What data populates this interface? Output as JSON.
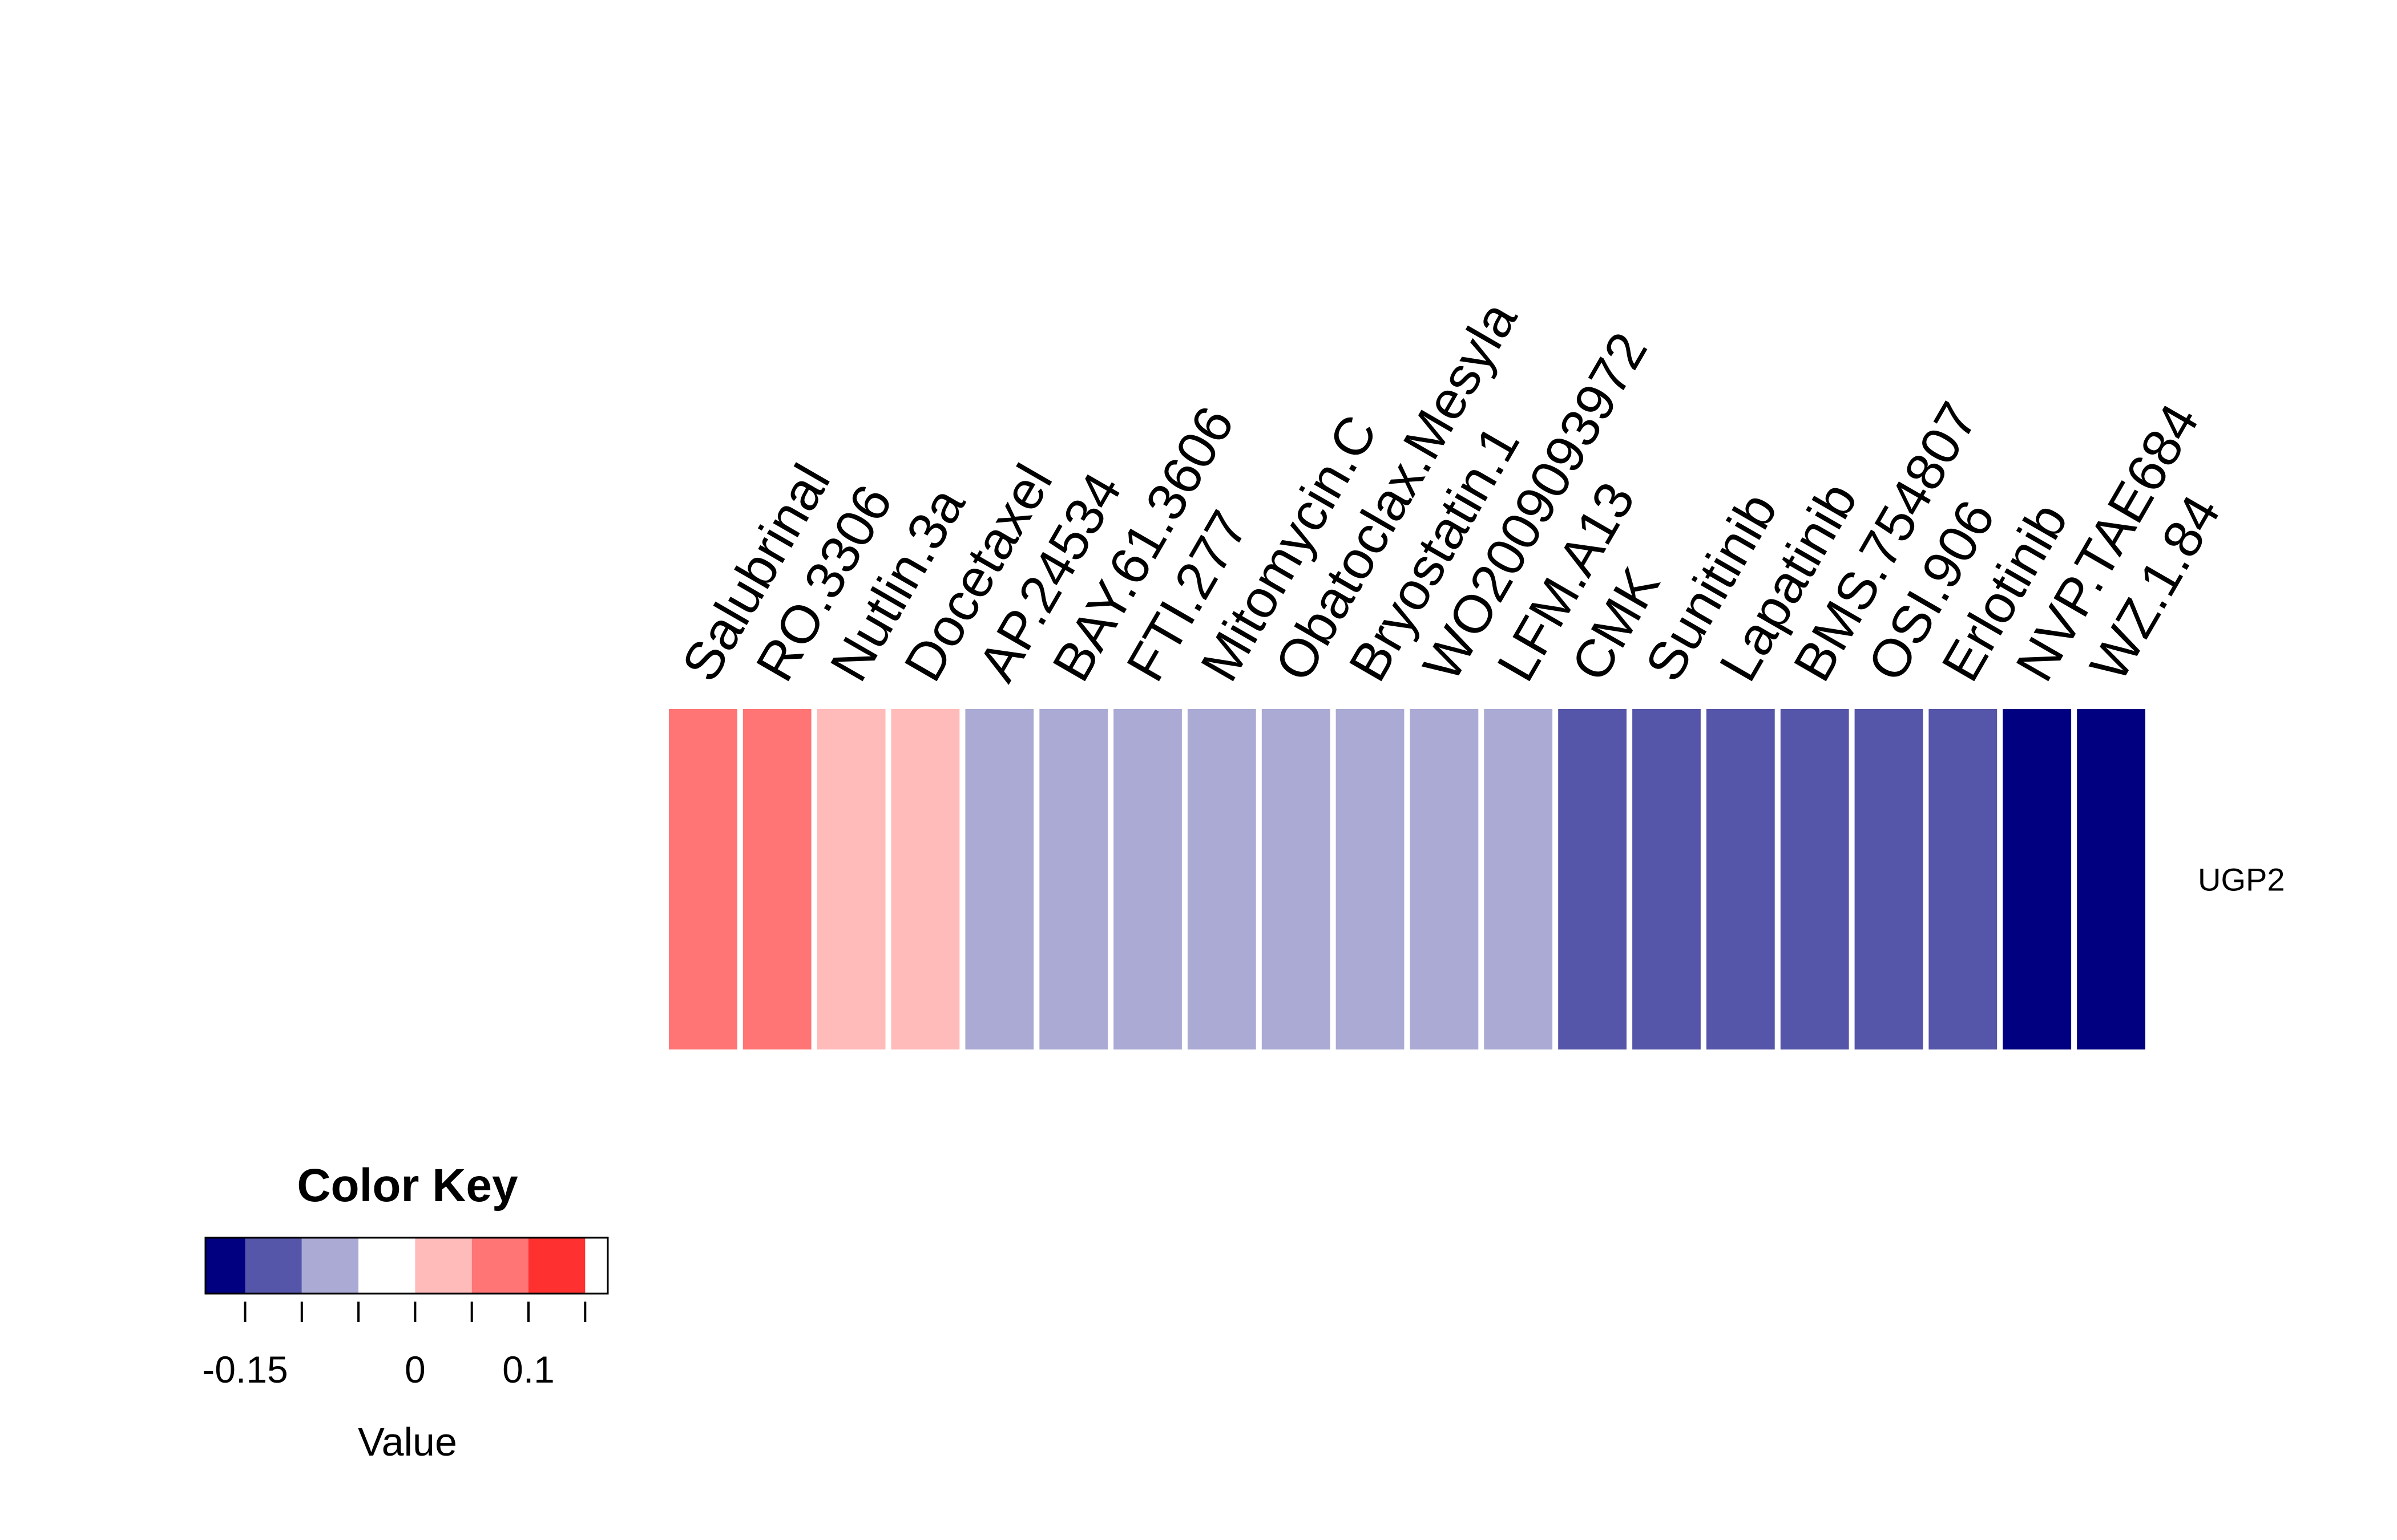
{
  "chart_data": {
    "type": "heatmap",
    "rows": [
      "UGP2"
    ],
    "columns": [
      "Salubrinal",
      "RO.3306",
      "Nutlin.3a",
      "Docetaxel",
      "AP.24534",
      "BAY.61.3606",
      "FTI.277",
      "Mitomycin.C",
      "Obatoclax.Mesyla",
      "Bryostatin.1",
      "WO2009093972",
      "LFM.A13",
      "CMK",
      "Sunitinib",
      "Lapatinib",
      "BMS.754807",
      "OSI.906",
      "Erlotinib",
      "NVP.TAE684",
      "WZ.1.84"
    ],
    "values": [
      [
        0.09,
        0.09,
        0.04,
        0.04,
        -0.07,
        -0.07,
        -0.07,
        -0.07,
        -0.07,
        -0.07,
        -0.07,
        -0.07,
        -0.12,
        -0.12,
        -0.12,
        -0.12,
        -0.12,
        -0.12,
        -0.17,
        -0.17
      ]
    ],
    "color_key": {
      "title": "Color Key",
      "xlabel": "Value",
      "breaks": [
        -0.2,
        -0.15,
        -0.1,
        -0.05,
        0,
        0.05,
        0.1,
        0.15
      ],
      "colors": [
        "#000080",
        "#5555AA",
        "#AAAAD4",
        "#FFFFFF",
        "#FFBABA",
        "#FF7575",
        "#FF3030"
      ],
      "tick_values": [
        -0.2,
        -0.15,
        -0.1,
        -0.05,
        0,
        0.05,
        0.1,
        0.15
      ],
      "tick_labels": [
        {
          "value": -0.15,
          "label": "-0.15"
        },
        {
          "value": 0,
          "label": "0"
        },
        {
          "value": 0.1,
          "label": "0.1"
        }
      ],
      "range": [
        -0.185,
        0.17
      ]
    }
  }
}
